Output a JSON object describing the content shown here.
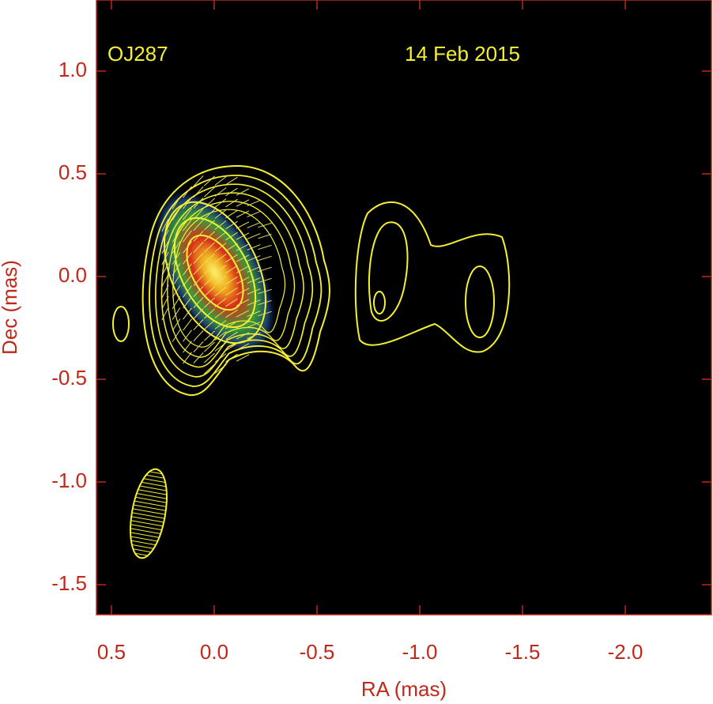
{
  "chart_data": {
    "type": "contour",
    "annotations": [
      "OJ287",
      "14 Feb 2015"
    ],
    "x_label": "RA (mas)",
    "y_label": "Dec (mas)",
    "xlim": [
      0.573,
      -2.419
    ],
    "ylim": [
      -1.646,
      1.346
    ],
    "xticks": [
      0.5,
      {
        "value": 0,
        "label": "0.0"
      },
      -0.5,
      {
        "value": -1,
        "label": "-1.0"
      },
      -1.5,
      {
        "value": -2,
        "label": "-2.0"
      }
    ],
    "yticks": [
      {
        "value": 1,
        "label": "1.0"
      },
      0.5,
      {
        "value": 0,
        "label": "0.0"
      },
      -0.5,
      {
        "value": -1,
        "label": "-1.0"
      },
      -1.5
    ],
    "contour_color": "#f5f032",
    "axis_color": "#c0281a"
  }
}
